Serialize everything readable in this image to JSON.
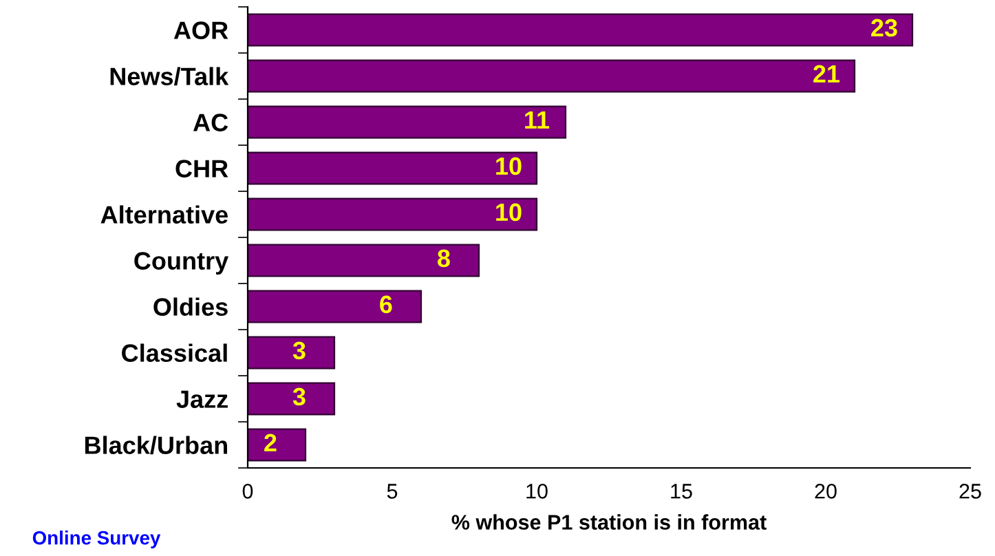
{
  "chart_data": {
    "type": "bar",
    "orientation": "horizontal",
    "categories": [
      "AOR",
      "News/Talk",
      "AC",
      "CHR",
      "Alternative",
      "Country",
      "Oldies",
      "Classical",
      "Jazz",
      "Black/Urban"
    ],
    "values": [
      23,
      21,
      11,
      10,
      10,
      8,
      6,
      3,
      3,
      2
    ],
    "color": "#800080",
    "xlim": [
      0,
      25
    ],
    "xticks": [
      0,
      5,
      10,
      15,
      20,
      25
    ],
    "xlabel": "% whose P1 station is in format",
    "data_labels": true,
    "annotations": [
      "Online Survey"
    ]
  }
}
